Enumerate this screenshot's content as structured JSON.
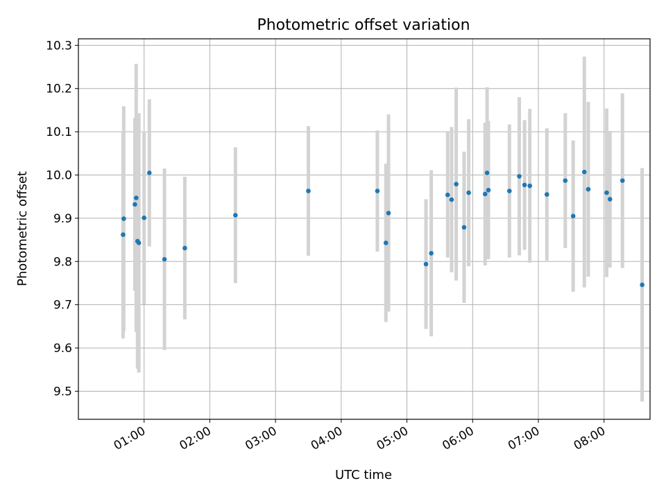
{
  "chart_data": {
    "type": "scatter",
    "title": "Photometric offset variation",
    "xlabel": "UTC time",
    "ylabel": "Photometric offset",
    "x_unit": "hours UTC",
    "xlim": [
      0.0,
      8.7
    ],
    "ylim": [
      9.435,
      10.315
    ],
    "x_ticks": [
      1,
      2,
      3,
      4,
      5,
      6,
      7,
      8
    ],
    "x_tick_labels": [
      "01:00",
      "02:00",
      "03:00",
      "04:00",
      "05:00",
      "06:00",
      "07:00",
      "08:00"
    ],
    "y_ticks": [
      9.5,
      9.6,
      9.7,
      9.8,
      9.9,
      10.0,
      10.1,
      10.2,
      10.3
    ],
    "y_tick_labels": [
      "9.5",
      "9.6",
      "9.7",
      "9.8",
      "9.9",
      "10.0",
      "10.1",
      "10.2",
      "10.3"
    ],
    "grid": true,
    "point_color": "#1f77b4",
    "errorbar_color": "#d3d3d3",
    "points": [
      {
        "x": 0.68,
        "y": 9.862,
        "err": 0.24
      },
      {
        "x": 0.69,
        "y": 9.899,
        "err": 0.26
      },
      {
        "x": 0.86,
        "y": 9.932,
        "err": 0.2
      },
      {
        "x": 0.88,
        "y": 9.947,
        "err": 0.31
      },
      {
        "x": 0.9,
        "y": 9.847,
        "err": 0.295
      },
      {
        "x": 0.92,
        "y": 9.843,
        "err": 0.3
      },
      {
        "x": 1.0,
        "y": 9.901,
        "err": 0.2
      },
      {
        "x": 1.08,
        "y": 10.005,
        "err": 0.17
      },
      {
        "x": 1.31,
        "y": 9.805,
        "err": 0.21
      },
      {
        "x": 1.62,
        "y": 9.831,
        "err": 0.165
      },
      {
        "x": 2.39,
        "y": 9.907,
        "err": 0.157
      },
      {
        "x": 3.5,
        "y": 9.963,
        "err": 0.15
      },
      {
        "x": 4.55,
        "y": 9.963,
        "err": 0.14
      },
      {
        "x": 4.68,
        "y": 9.843,
        "err": 0.183
      },
      {
        "x": 4.72,
        "y": 9.912,
        "err": 0.228
      },
      {
        "x": 5.29,
        "y": 9.794,
        "err": 0.15
      },
      {
        "x": 5.37,
        "y": 9.819,
        "err": 0.192
      },
      {
        "x": 5.62,
        "y": 9.954,
        "err": 0.145
      },
      {
        "x": 5.68,
        "y": 9.943,
        "err": 0.168
      },
      {
        "x": 5.75,
        "y": 9.979,
        "err": 0.223
      },
      {
        "x": 5.87,
        "y": 9.879,
        "err": 0.175
      },
      {
        "x": 5.94,
        "y": 9.959,
        "err": 0.17
      },
      {
        "x": 6.19,
        "y": 9.956,
        "err": 0.165
      },
      {
        "x": 6.22,
        "y": 10.005,
        "err": 0.198
      },
      {
        "x": 6.24,
        "y": 9.965,
        "err": 0.16
      },
      {
        "x": 6.56,
        "y": 9.963,
        "err": 0.154
      },
      {
        "x": 6.71,
        "y": 9.997,
        "err": 0.183
      },
      {
        "x": 6.79,
        "y": 9.977,
        "err": 0.15
      },
      {
        "x": 6.87,
        "y": 9.975,
        "err": 0.178
      },
      {
        "x": 7.13,
        "y": 9.955,
        "err": 0.153
      },
      {
        "x": 7.41,
        "y": 9.987,
        "err": 0.156
      },
      {
        "x": 7.53,
        "y": 9.905,
        "err": 0.175
      },
      {
        "x": 7.7,
        "y": 10.007,
        "err": 0.267
      },
      {
        "x": 7.76,
        "y": 9.967,
        "err": 0.202
      },
      {
        "x": 8.04,
        "y": 9.959,
        "err": 0.195
      },
      {
        "x": 8.09,
        "y": 9.944,
        "err": 0.158
      },
      {
        "x": 8.28,
        "y": 9.987,
        "err": 0.202
      },
      {
        "x": 8.58,
        "y": 9.746,
        "err": 0.27
      }
    ]
  }
}
